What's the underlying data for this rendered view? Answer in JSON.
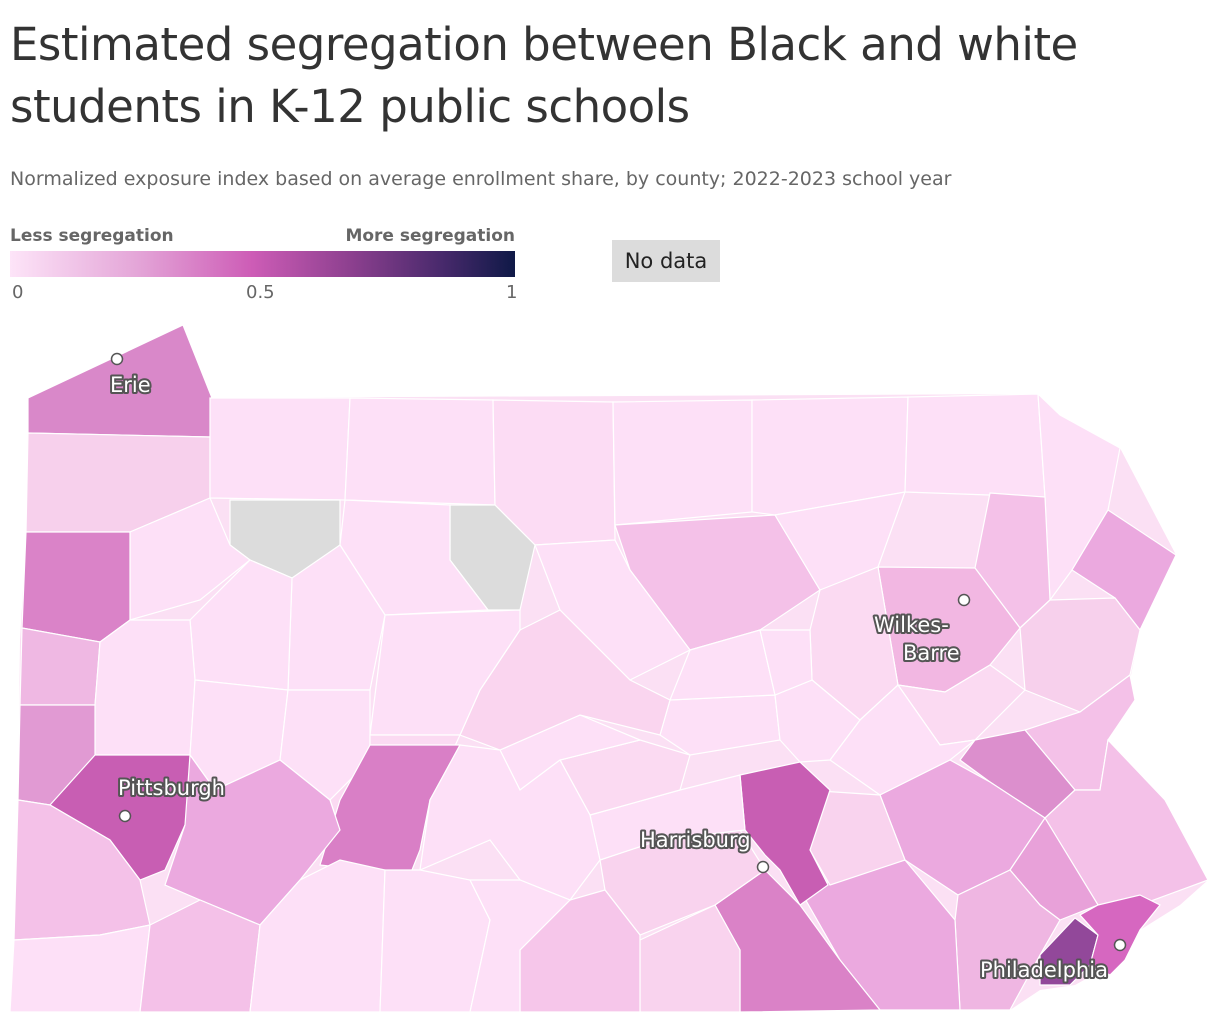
{
  "title": "Estimated segregation between Black and white students in K-12 public schools",
  "subtitle": "Normalized exposure index based on average enrollment share, by county; 2022-2023 school year",
  "legend": {
    "low_label": "Less segregation",
    "high_label": "More segregation",
    "ticks": [
      "0",
      "0.5",
      "1"
    ],
    "no_data_label": "No data",
    "color_stops": [
      "#fde4f8",
      "#e4a6d8",
      "#cd5cb6",
      "#8b3f8e",
      "#4a2a6d",
      "#0f1947"
    ],
    "no_data_color": "#dcdcdc"
  },
  "cities": {
    "erie": "Erie",
    "pittsburgh": "Pittsburgh",
    "harrisburg": "Harrisburg",
    "wilkes_barre_line1": "Wilkes-",
    "wilkes_barre_line2": "Barre",
    "philadelphia": "Philadelphia"
  }
}
